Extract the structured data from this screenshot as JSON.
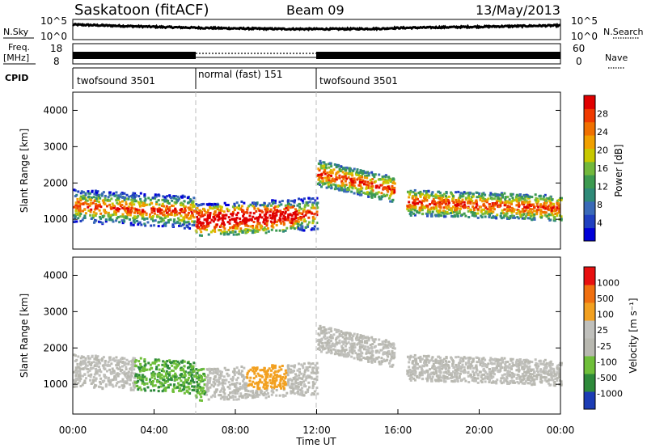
{
  "header": {
    "station": "Saskatoon (fitACF)",
    "beam": "Beam 09",
    "date": "13/May/2013"
  },
  "panels": {
    "nsky": {
      "left_label": "N.Sky",
      "right_label": "N.Search",
      "left_ticks": [
        "10^5",
        "10^0"
      ],
      "right_ticks": [
        "10^5",
        "10^0"
      ]
    },
    "freq": {
      "left_label_1": "Freq.",
      "left_label_2": "[MHz]",
      "right_label": "Nave",
      "left_ticks": [
        "18",
        "8"
      ],
      "right_ticks": [
        "60",
        "0"
      ]
    },
    "cpid": {
      "label": "CPID",
      "segments": [
        {
          "text": "twofsound 3501",
          "start_h": 0,
          "end_h": 6
        },
        {
          "text": "normal (fast) 151",
          "start_h": 6,
          "end_h": 12
        },
        {
          "text": "twofsound 3501",
          "start_h": 12,
          "end_h": 24
        }
      ]
    }
  },
  "chart_data": [
    {
      "type": "heatmap",
      "name": "power",
      "xlabel": "Time UT",
      "ylabel": "Slant Range [km]",
      "xlim": [
        0,
        24
      ],
      "ylim": [
        180,
        4500
      ],
      "y_ticks": [
        1000,
        2000,
        3000,
        4000
      ],
      "colorbar_label": "Power [dB]",
      "colorbar_ticks": [
        4,
        8,
        12,
        16,
        20,
        24,
        28
      ],
      "colorbar_colors": [
        "#0000d8",
        "#2040c0",
        "#3a6ab8",
        "#2f8a78",
        "#3d9a50",
        "#72b83c",
        "#c8c800",
        "#f0a000",
        "#f07000",
        "#f03a00",
        "#e00000"
      ]
    },
    {
      "type": "heatmap",
      "name": "velocity",
      "xlabel": "Time UT",
      "ylabel": "Slant Range [km]",
      "xlim": [
        0,
        24
      ],
      "ylim": [
        180,
        4500
      ],
      "y_ticks": [
        1000,
        2000,
        3000,
        4000
      ],
      "colorbar_label": "Velocity [m s⁻¹]",
      "colorbar_ticks": [
        "1000",
        "500",
        "100",
        "25",
        "-25",
        "-100",
        "-500",
        "-1000"
      ],
      "colorbar_colors": [
        "#1c3cb4",
        "#2e8a3a",
        "#6fbf3a",
        "#b8b8b0",
        "#c0c0bc",
        "#f2a020",
        "#f07010",
        "#e81010"
      ],
      "x_ticks": [
        "00:00",
        "04:00",
        "08:00",
        "12:00",
        "16:00",
        "20:00",
        "00:00"
      ]
    }
  ]
}
